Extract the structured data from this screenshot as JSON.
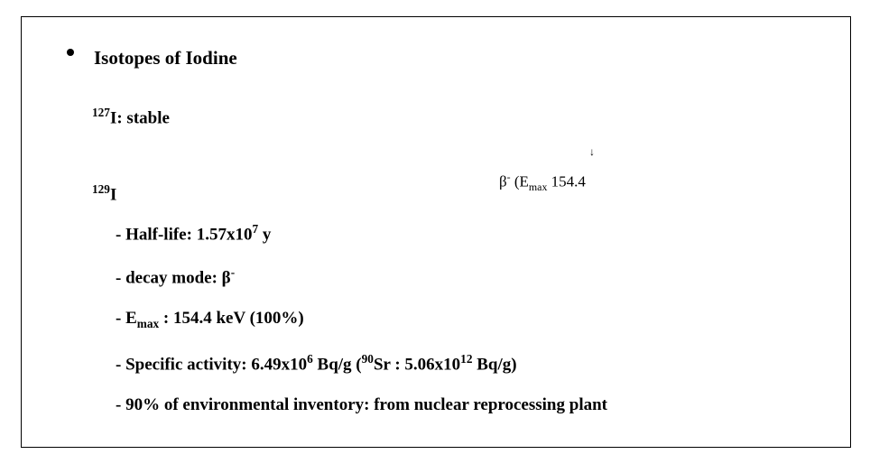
{
  "card": {
    "border_color": "#000000",
    "background_color": "#ffffff",
    "text_color": "#000000",
    "font_family": "Times New Roman",
    "title_fontsize": 21,
    "body_fontsize": 19
  },
  "title": "Isotopes of Iodine",
  "iso127": {
    "super": "127",
    "sym": "I",
    "after": ": stable"
  },
  "iso129": {
    "super": "129",
    "sym": "I"
  },
  "items": {
    "halflife": {
      "dash": "- ",
      "label": "Half-life: ",
      "val_pre": "1.57x10",
      "val_sup": "7",
      "val_post": " y"
    },
    "decay": {
      "dash": "- ",
      "label": "decay mode:  ",
      "beta": "β",
      "minus": "-"
    },
    "emax": {
      "dash": "- ",
      "E": "E",
      "sub": "max",
      "after": " : 154.4 keV (100%)"
    },
    "spact": {
      "dash": "- ",
      "label": "Specific activity: ",
      "v1": "6.49x10",
      "s1": "6",
      "mid": " Bq/g (",
      "sr_sup": "90",
      "sr": "Sr : ",
      "v2": "5.06x10",
      "s2": "12",
      "end": " Bq/g)"
    },
    "env": {
      "dash": "- ",
      "text": "90% of environmental inventory: from nuclear reprocessing plant"
    }
  },
  "float": {
    "arrow": "↓",
    "beta": "β",
    "minus": "-",
    "open": " (E",
    "sub": "max",
    "sp": " ",
    "val": "154.",
    "trail": "4"
  }
}
